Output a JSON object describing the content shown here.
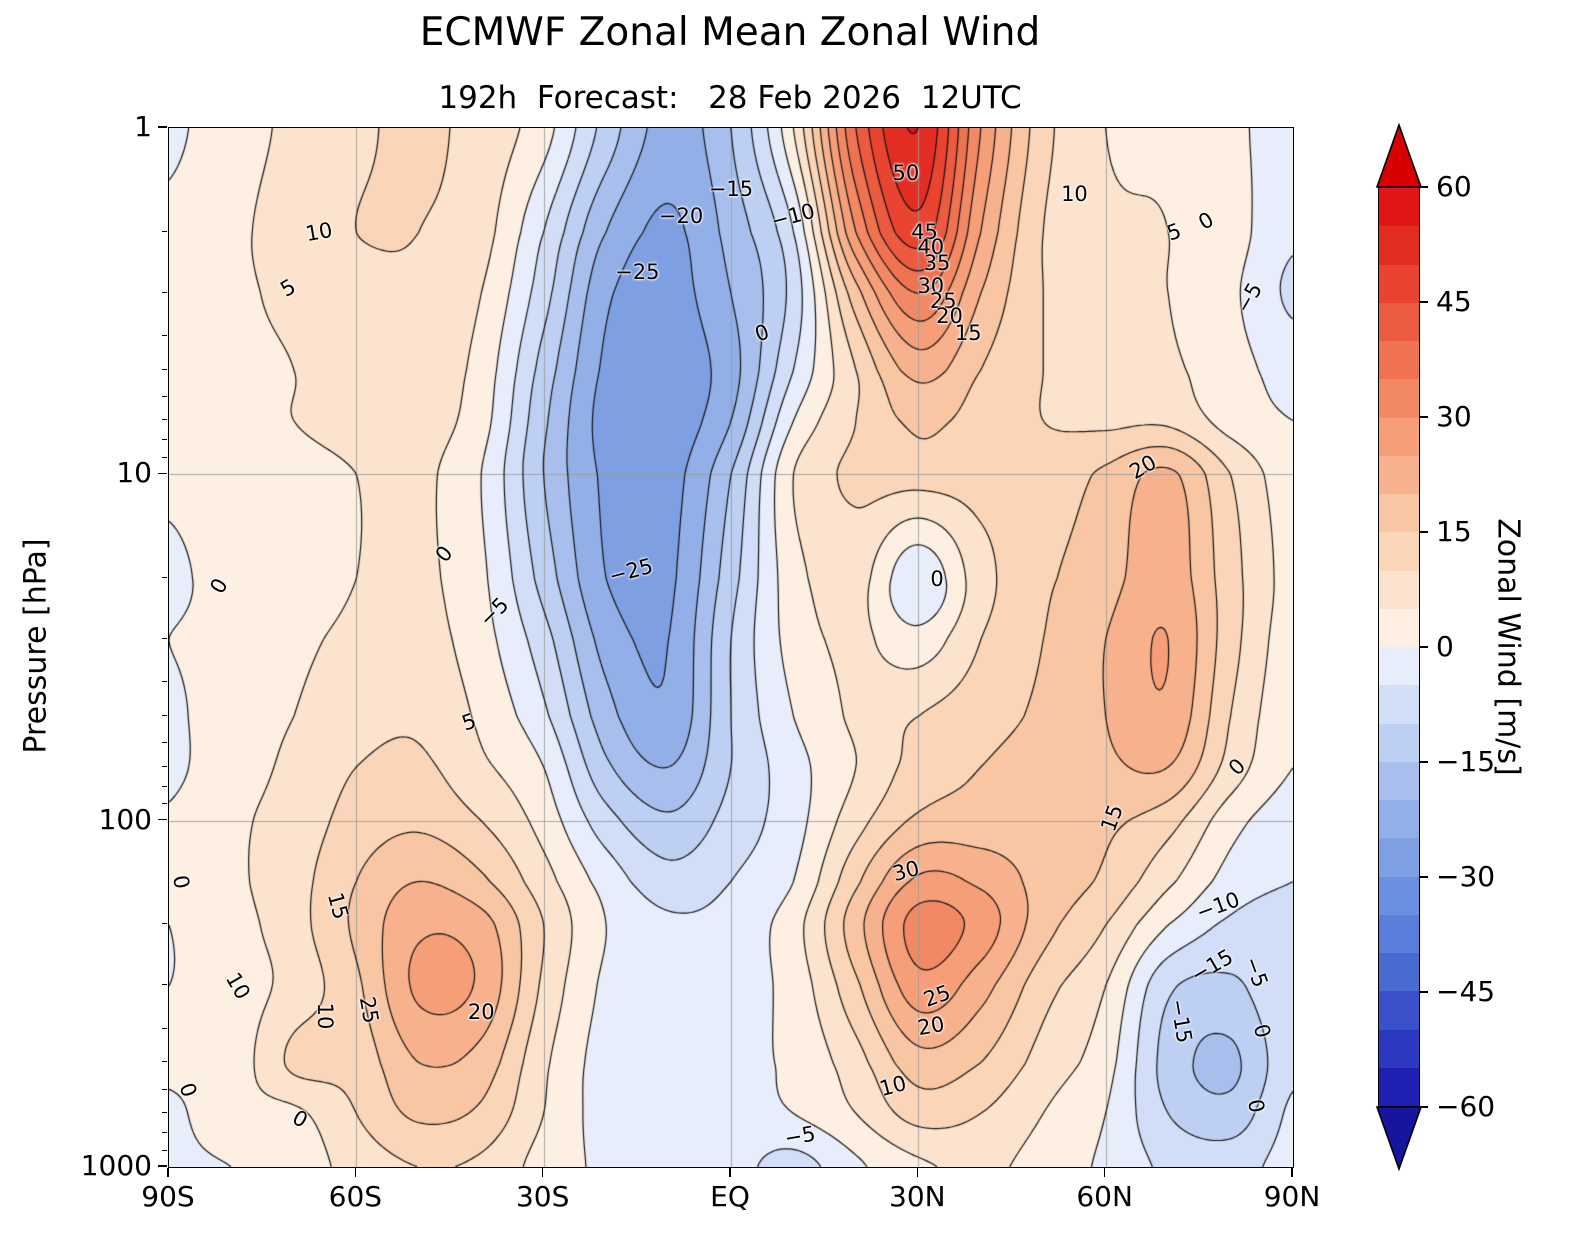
{
  "title": "ECMWF Zonal Mean Zonal Wind",
  "subtitle": "192h  Forecast:   28 Feb 2026  12UTC",
  "axes": {
    "y_label": "Pressure [hPa]",
    "x_ticks": [
      {
        "label": "90S",
        "lat": -90
      },
      {
        "label": "60S",
        "lat": -60
      },
      {
        "label": "30S",
        "lat": -30
      },
      {
        "label": "EQ",
        "lat": 0
      },
      {
        "label": "30N",
        "lat": 30
      },
      {
        "label": "60N",
        "lat": 60
      },
      {
        "label": "90N",
        "lat": 90
      }
    ],
    "y_ticks": [
      {
        "label": "1",
        "p": 1
      },
      {
        "label": "10",
        "p": 10
      },
      {
        "label": "100",
        "p": 100
      },
      {
        "label": "1000",
        "p": 1000
      }
    ],
    "y_minor_pressures": [
      2,
      3,
      4,
      5,
      6,
      7,
      8,
      9,
      20,
      30,
      40,
      50,
      60,
      70,
      80,
      90,
      200,
      300,
      400,
      500,
      600,
      700,
      800,
      900
    ],
    "grid_lats": [
      -60,
      -30,
      0,
      30,
      60
    ],
    "grid_pressures": [
      10,
      100
    ]
  },
  "colorbar": {
    "label": "Zonal Wind [m/s]",
    "min": -60,
    "max": 60,
    "step": 5,
    "ticks": [
      {
        "label": "60",
        "value": 60
      },
      {
        "label": "45",
        "value": 45
      },
      {
        "label": "30",
        "value": 30
      },
      {
        "label": "15",
        "value": 15
      },
      {
        "label": "0",
        "value": 0
      },
      {
        "label": "−15",
        "value": -15
      },
      {
        "label": "−30",
        "value": -30
      },
      {
        "label": "−45",
        "value": -45
      },
      {
        "label": "−60",
        "value": -60
      }
    ],
    "under_color": "#15159f",
    "over_color": "#d90000",
    "palette": [
      "#1f1fb4",
      "#2c38bf",
      "#3a51ca",
      "#4969d3",
      "#597edb",
      "#6b90e1",
      "#7f9fe3",
      "#93afe8",
      "#a8bfee",
      "#bdcff3",
      "#d2def7",
      "#e7edfb",
      "#fdf0e2",
      "#fce3cd",
      "#fbd5b8",
      "#f9c6a3",
      "#f7b28d",
      "#f59e78",
      "#f28964",
      "#ef7251",
      "#ec5a40",
      "#e84430",
      "#e42d22",
      "#e01515"
    ]
  },
  "chart_data": {
    "type": "heatmap",
    "title": "ECMWF Zonal Mean Zonal Wind",
    "subtitle": "192h Forecast: 28 Feb 2026 12UTC",
    "units": "m/s",
    "contour_interval": 5,
    "x_lats": [
      -90,
      -80,
      -70,
      -60,
      -50,
      -40,
      -30,
      -20,
      -10,
      0,
      10,
      20,
      30,
      40,
      50,
      60,
      70,
      80,
      90
    ],
    "y_pressures_hPa": [
      1,
      2,
      3,
      5,
      7,
      10,
      20,
      30,
      50,
      70,
      100,
      150,
      200,
      300,
      500,
      700,
      1000
    ],
    "values": [
      [
        -1,
        3,
        6,
        9,
        11,
        8,
        2,
        -12,
        -22,
        -15,
        5,
        40,
        55,
        30,
        12,
        5,
        4,
        1,
        -2
      ],
      [
        1,
        4,
        7,
        10,
        10,
        7,
        -5,
        -20,
        -26,
        -18,
        -5,
        30,
        48,
        25,
        10,
        6,
        5,
        2,
        -4
      ],
      [
        1,
        4,
        6,
        8,
        9,
        5,
        -8,
        -24,
        -27,
        -20,
        -8,
        18,
        35,
        20,
        10,
        7,
        5,
        1,
        -6
      ],
      [
        2,
        4,
        5,
        7,
        8,
        3,
        -12,
        -26,
        -28,
        -22,
        -5,
        10,
        22,
        15,
        10,
        8,
        6,
        2,
        -2
      ],
      [
        2,
        4,
        5,
        6,
        7,
        2,
        -14,
        -27,
        -28,
        -20,
        0,
        10,
        16,
        13,
        10,
        9,
        9,
        3,
        0
      ],
      [
        1,
        3,
        4,
        5,
        6,
        0,
        -15,
        -26,
        -27,
        -15,
        5,
        11,
        12,
        12,
        12,
        16,
        21,
        10,
        2
      ],
      [
        -1,
        2,
        3,
        5,
        6,
        1,
        -12,
        -25,
        -26,
        -12,
        3,
        7,
        -4,
        8,
        14,
        18,
        23,
        12,
        3
      ],
      [
        0,
        2,
        4,
        6,
        7,
        2,
        -8,
        -22,
        -25,
        -10,
        2,
        6,
        2,
        10,
        15,
        20,
        25,
        12,
        2
      ],
      [
        -1,
        3,
        5,
        8,
        9,
        4,
        -4,
        -18,
        -24,
        -10,
        0,
        6,
        10,
        13,
        16,
        20,
        24,
        10,
        1
      ],
      [
        -1,
        3,
        6,
        10,
        11,
        6,
        0,
        -14,
        -20,
        -10,
        -2,
        5,
        12,
        15,
        17,
        19,
        20,
        8,
        0
      ],
      [
        0.5,
        4,
        7,
        12,
        14,
        10,
        3,
        -8,
        -14,
        -8,
        -2,
        8,
        16,
        17,
        17,
        16,
        12,
        2,
        -3
      ],
      [
        1,
        4,
        8,
        15,
        20,
        16,
        7,
        -2,
        -8,
        -5,
        0,
        14,
        26,
        24,
        18,
        14,
        6,
        -2,
        -5
      ],
      [
        0,
        3,
        8,
        16,
        24,
        22,
        10,
        0,
        -4,
        -3,
        3,
        18,
        32,
        28,
        17,
        10,
        0,
        -6,
        -7
      ],
      [
        0,
        2,
        7,
        14,
        26,
        24,
        9,
        -1,
        -3,
        -2,
        2,
        14,
        28,
        22,
        12,
        5,
        -9,
        -11,
        -5
      ],
      [
        1,
        2,
        11,
        12,
        20,
        18,
        6,
        -2,
        -2,
        -1,
        1,
        8,
        18,
        15,
        8,
        2,
        -12,
        -16,
        -6
      ],
      [
        -1,
        3,
        4,
        10,
        16,
        14,
        5,
        -2,
        -2,
        -2,
        0,
        5,
        12,
        10,
        5,
        0,
        -10,
        -13,
        -4
      ],
      [
        -1,
        0,
        2,
        7,
        10,
        9,
        3,
        -1,
        -2,
        -3,
        -7,
        -1,
        4,
        6,
        3,
        -1,
        -6,
        -7,
        -3
      ]
    ],
    "contour_labels": [
      {
        "text": "10",
        "lat": -66,
        "p": 2.0,
        "rot": -10
      },
      {
        "text": "5",
        "lat": -71,
        "p": 2.9,
        "rot": -30
      },
      {
        "text": "0",
        "lat": -82,
        "p": 21,
        "rot": -60
      },
      {
        "text": "0",
        "lat": -46,
        "p": 17,
        "rot": -50
      },
      {
        "text": "−5",
        "lat": -38,
        "p": 25,
        "rot": -45
      },
      {
        "text": "5",
        "lat": -42,
        "p": 52,
        "rot": -20
      },
      {
        "text": "−25",
        "lat": -15,
        "p": 2.6,
        "rot": 0
      },
      {
        "text": "−25",
        "lat": -16,
        "p": 19,
        "rot": -15
      },
      {
        "text": "−20",
        "lat": -8,
        "p": 1.8,
        "rot": 0
      },
      {
        "text": "−15",
        "lat": 0,
        "p": 1.5,
        "rot": 0
      },
      {
        "text": "−10",
        "lat": 10,
        "p": 1.8,
        "rot": -15
      },
      {
        "text": "0",
        "lat": 5,
        "p": 3.9,
        "rot": -20
      },
      {
        "text": "50",
        "lat": 28,
        "p": 1.35,
        "rot": 0
      },
      {
        "text": "45",
        "lat": 31,
        "p": 2.0,
        "rot": 0
      },
      {
        "text": "40",
        "lat": 32,
        "p": 2.2,
        "rot": 0
      },
      {
        "text": "35",
        "lat": 33,
        "p": 2.45,
        "rot": 0
      },
      {
        "text": "30",
        "lat": 32,
        "p": 2.85,
        "rot": 0
      },
      {
        "text": "25",
        "lat": 34,
        "p": 3.15,
        "rot": 0
      },
      {
        "text": "20",
        "lat": 35,
        "p": 3.5,
        "rot": 0
      },
      {
        "text": "15",
        "lat": 38,
        "p": 3.9,
        "rot": 0
      },
      {
        "text": "10",
        "lat": 55,
        "p": 1.55,
        "rot": 0
      },
      {
        "text": "5",
        "lat": 71,
        "p": 2.0,
        "rot": -20
      },
      {
        "text": "0",
        "lat": 76,
        "p": 1.85,
        "rot": -30
      },
      {
        "text": "−5",
        "lat": 83,
        "p": 3.1,
        "rot": -60
      },
      {
        "text": "20",
        "lat": 66,
        "p": 9.5,
        "rot": -30
      },
      {
        "text": "0",
        "lat": 33,
        "p": 20,
        "rot": 0
      },
      {
        "text": "0",
        "lat": -88,
        "p": 150,
        "rot": 80
      },
      {
        "text": "15",
        "lat": -63,
        "p": 176,
        "rot": 75
      },
      {
        "text": "10",
        "lat": -79,
        "p": 300,
        "rot": 60
      },
      {
        "text": "10",
        "lat": -65,
        "p": 366,
        "rot": 90
      },
      {
        "text": "25",
        "lat": -58,
        "p": 353,
        "rot": 80
      },
      {
        "text": "20",
        "lat": -40,
        "p": 357,
        "rot": 0
      },
      {
        "text": "0",
        "lat": -87,
        "p": 600,
        "rot": 70
      },
      {
        "text": "0",
        "lat": -69,
        "p": 726,
        "rot": 30
      },
      {
        "text": "30",
        "lat": 28,
        "p": 140,
        "rot": -15
      },
      {
        "text": "25",
        "lat": 33,
        "p": 320,
        "rot": -20
      },
      {
        "text": "20",
        "lat": 32,
        "p": 391,
        "rot": -10
      },
      {
        "text": "10",
        "lat": 26,
        "p": 583,
        "rot": -15
      },
      {
        "text": "−5",
        "lat": 11,
        "p": 815,
        "rot": -10
      },
      {
        "text": "15",
        "lat": 61,
        "p": 98,
        "rot": -70
      },
      {
        "text": "0",
        "lat": 81,
        "p": 70,
        "rot": -45
      },
      {
        "text": "−10",
        "lat": 78,
        "p": 176,
        "rot": -20
      },
      {
        "text": "−15",
        "lat": 77,
        "p": 262,
        "rot": -30
      },
      {
        "text": "−15",
        "lat": 72,
        "p": 378,
        "rot": 80
      },
      {
        "text": "−5",
        "lat": 84,
        "p": 273,
        "rot": 70
      },
      {
        "text": "0",
        "lat": 85,
        "p": 404,
        "rot": 75
      },
      {
        "text": "0",
        "lat": 84,
        "p": 667,
        "rot": 80
      }
    ]
  }
}
